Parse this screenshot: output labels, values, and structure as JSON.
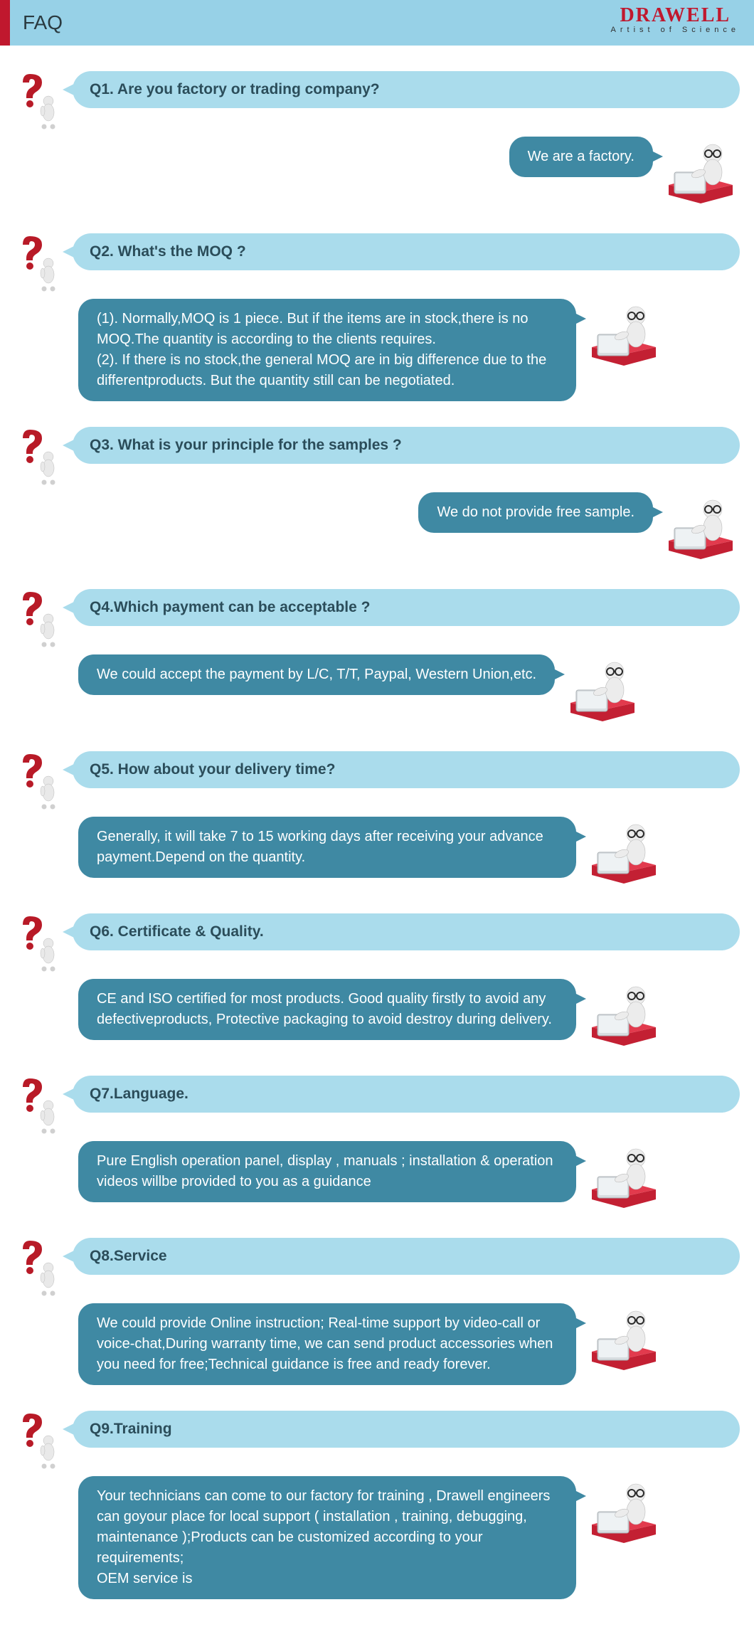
{
  "header": {
    "title": "FAQ",
    "logo_main": "DRAWELL",
    "logo_sub": "Artist of Science"
  },
  "colors": {
    "header_bar": "#97d1e7",
    "red_tab": "#c0182e",
    "question_bg": "#aadcec",
    "question_text": "#2b4d5a",
    "answer_bg": "#3f89a3",
    "answer_text": "#ffffff",
    "logo_color": "#c0182e"
  },
  "faq": [
    {
      "q": "Q1. Are you factory or trading company?",
      "a": "We are a factory.",
      "a_wide": false,
      "a_shift": false
    },
    {
      "q": "Q2. What's the MOQ ?",
      "a": "(1). Normally,MOQ is 1 piece. But if the items are in stock,there is no MOQ.The quantity is according to the clients requires.\n(2). If there is no stock,the general MOQ are in big difference due to the differentproducts. But the quantity still can be negotiated.",
      "a_wide": true,
      "a_shift": true
    },
    {
      "q": "Q3. What is your principle for the samples ?",
      "a": "We do not provide free sample.",
      "a_wide": false,
      "a_shift": false
    },
    {
      "q": "Q4.Which payment can be acceptable ?",
      "a": "We could accept the payment by L/C, T/T, Paypal, Western Union,etc.",
      "a_wide": true,
      "a_shift": true
    },
    {
      "q": "Q5. How about your delivery time?",
      "a": "Generally, it will take 7 to 15 working days after receiving your advance payment.Depend on the quantity.",
      "a_wide": true,
      "a_shift": true
    },
    {
      "q": "Q6. Certificate & Quality.",
      "a": "CE and ISO certified for most products. Good quality firstly to avoid any defectiveproducts, Protective packaging to avoid destroy during delivery.",
      "a_wide": true,
      "a_shift": true
    },
    {
      "q": "Q7.Language.",
      "a": "Pure English operation panel, display , manuals ; installation & operation videos willbe provided to you as a guidance",
      "a_wide": true,
      "a_shift": true
    },
    {
      "q": "Q8.Service",
      "a": "We could provide Online instruction; Real-time support by video-call or voice-chat,During warranty time, we can send product accessories when you need for free;Technical guidance is free and ready forever.",
      "a_wide": true,
      "a_shift": true
    },
    {
      "q": "Q9.Training",
      "a": "Your technicians can come to our factory for training , Drawell engineers can goyour place for local support ( installation , training, debugging, maintenance );Products can be customized according to your requirements;\nOEM service is",
      "a_wide": true,
      "a_shift": true
    }
  ]
}
